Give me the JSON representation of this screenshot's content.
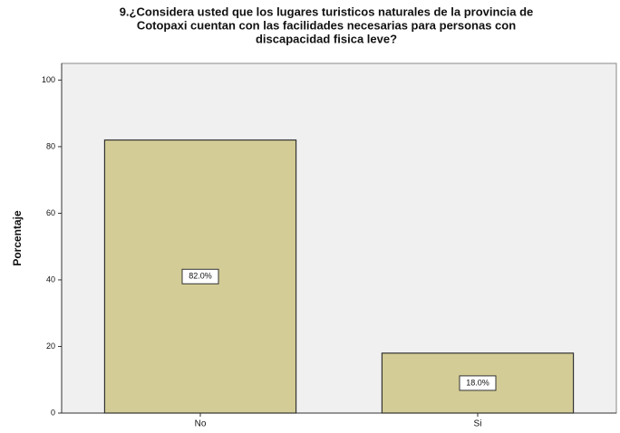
{
  "chart_data": {
    "type": "bar",
    "title": [
      "9.¿Considera usted que los lugares turisticos naturales de la provincia de",
      "Cotopaxi cuentan con las facilidades necesarias para personas con",
      "discapacidad fisica leve?"
    ],
    "y_label": "Porcentaje",
    "categories": [
      "No",
      "Si"
    ],
    "values": [
      82.0,
      18.0
    ],
    "value_labels": [
      "82.0%",
      "18.0%"
    ],
    "color": "#d3cc96",
    "ylim": [
      0,
      105
    ],
    "yticks": [
      0,
      20,
      40,
      60,
      80,
      100
    ],
    "grid": false
  }
}
